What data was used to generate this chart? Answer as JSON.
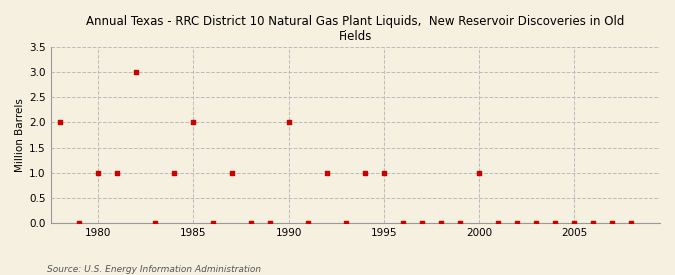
{
  "title": "Annual Texas - RRC District 10 Natural Gas Plant Liquids,  New Reservoir Discoveries in Old\nFields",
  "ylabel": "Million Barrels",
  "source": "Source: U.S. Energy Information Administration",
  "background_color": "#f5f0df",
  "plot_background_color": "#f5f0df",
  "marker_color": "#cc0000",
  "grid_color": "#bbbbbb",
  "xlim": [
    1977.5,
    2009.5
  ],
  "ylim": [
    0,
    3.5
  ],
  "yticks": [
    0.0,
    0.5,
    1.0,
    1.5,
    2.0,
    2.5,
    3.0,
    3.5
  ],
  "xticks": [
    1980,
    1985,
    1990,
    1995,
    2000,
    2005
  ],
  "years": [
    1978,
    1979,
    1980,
    1981,
    1982,
    1983,
    1984,
    1985,
    1986,
    1987,
    1988,
    1989,
    1990,
    1991,
    1992,
    1993,
    1994,
    1995,
    1996,
    1997,
    1998,
    1999,
    2000,
    2001,
    2002,
    2003,
    2004,
    2005,
    2006,
    2007,
    2008
  ],
  "values": [
    2.0,
    0.0,
    1.0,
    1.0,
    3.0,
    0.0,
    1.0,
    2.0,
    0.0,
    1.0,
    0.0,
    0.0,
    2.0,
    0.0,
    1.0,
    0.0,
    1.0,
    1.0,
    0.0,
    0.0,
    0.0,
    0.0,
    1.0,
    0.0,
    0.0,
    0.0,
    0.0,
    0.0,
    0.0,
    0.0,
    0.0
  ]
}
